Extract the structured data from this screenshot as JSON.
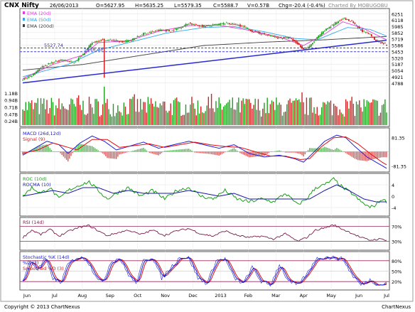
{
  "header": {
    "symbol": "CNX Nifty",
    "date": "26/06/2013",
    "open": "O=5627.95",
    "high": "H=5635.25",
    "low": "L=5579.35",
    "close": "C=5588.7",
    "volume": "V=0.57B",
    "change": "Chg=-20.4 (-0.4%)",
    "charted_by": "Charted By MOBUGOBU"
  },
  "footer": {
    "copyright": "Copyright © 2013 ChartNexus",
    "brand": "ChartNexus"
  },
  "colors": {
    "price_up": "#1a9a1a",
    "price_down": "#d01818",
    "ema20": "#e040e0",
    "ema50": "#30a8f0",
    "ema200": "#404040",
    "trendline": "#2a2ad0",
    "volume_up": "#1f9f1f",
    "volume_down": "#d02222",
    "macd": "#2020d0",
    "signal": "#e01010",
    "roc": "#18a018",
    "rocma": "#1a1aa8",
    "rsi": "#7a1a4a",
    "stoch_k": "#1a1ad0",
    "stoch_d": "#e01010",
    "ref_line": "#9a2a5a"
  },
  "chart_data": [
    {
      "type": "candlestick",
      "panel": "price",
      "legend": [
        {
          "name": "EMA (20d)",
          "color": "#e040e0"
        },
        {
          "name": "EMA (50d)",
          "color": "#30a8f0"
        },
        {
          "name": "EMA (200d)",
          "color": "#404040"
        }
      ],
      "x_ticks": [
        "Jun",
        "Jul",
        "Aug",
        "Sep",
        "Oct",
        "Nov",
        "Dec",
        "2013",
        "Feb",
        "Mar",
        "Apr",
        "May",
        "Jun",
        "Jul"
      ],
      "y_ticks": [
        "6251",
        "6118",
        "5985",
        "5852",
        "5719",
        "5586",
        "5453",
        "5320",
        "5187",
        "5054",
        "4921",
        "4788"
      ],
      "ylim": [
        4740,
        6300
      ],
      "annotations": [
        {
          "text": "5527.74",
          "level": 5527.74
        },
        {
          "text": "5448.43",
          "level": 5448.43
        }
      ],
      "close_waypoints": [
        [
          0,
          4860
        ],
        [
          6,
          4950
        ],
        [
          12,
          5120
        ],
        [
          18,
          5200
        ],
        [
          26,
          5280
        ],
        [
          34,
          5220
        ],
        [
          40,
          5400
        ],
        [
          46,
          5640
        ],
        [
          52,
          5700
        ],
        [
          60,
          5690
        ],
        [
          66,
          5650
        ],
        [
          72,
          5700
        ],
        [
          76,
          5760
        ],
        [
          80,
          5830
        ],
        [
          86,
          5870
        ],
        [
          92,
          5910
        ],
        [
          98,
          5880
        ],
        [
          104,
          5960
        ],
        [
          110,
          6050
        ],
        [
          116,
          6000
        ],
        [
          122,
          5980
        ],
        [
          128,
          6020
        ],
        [
          134,
          6050
        ],
        [
          140,
          6030
        ],
        [
          146,
          5980
        ],
        [
          152,
          5880
        ],
        [
          158,
          5830
        ],
        [
          164,
          5780
        ],
        [
          170,
          5740
        ],
        [
          176,
          5740
        ],
        [
          180,
          5670
        ],
        [
          186,
          5500
        ],
        [
          190,
          5560
        ],
        [
          196,
          5780
        ],
        [
          202,
          5950
        ],
        [
          208,
          6070
        ],
        [
          212,
          6160
        ],
        [
          218,
          6080
        ],
        [
          224,
          5900
        ],
        [
          230,
          5810
        ],
        [
          234,
          5680
        ],
        [
          238,
          5640
        ],
        [
          241,
          5590
        ]
      ],
      "ema20_waypoints": [
        [
          0,
          4880
        ],
        [
          20,
          5180
        ],
        [
          40,
          5380
        ],
        [
          50,
          5640
        ],
        [
          70,
          5680
        ],
        [
          90,
          5880
        ],
        [
          110,
          6000
        ],
        [
          130,
          6010
        ],
        [
          150,
          5900
        ],
        [
          170,
          5760
        ],
        [
          186,
          5580
        ],
        [
          200,
          5820
        ],
        [
          212,
          6080
        ],
        [
          225,
          5950
        ],
        [
          241,
          5700
        ]
      ],
      "ema50_waypoints": [
        [
          0,
          4920
        ],
        [
          30,
          5180
        ],
        [
          50,
          5480
        ],
        [
          70,
          5640
        ],
        [
          95,
          5840
        ],
        [
          120,
          5960
        ],
        [
          140,
          5980
        ],
        [
          160,
          5870
        ],
        [
          180,
          5730
        ],
        [
          195,
          5700
        ],
        [
          215,
          5960
        ],
        [
          230,
          5920
        ],
        [
          241,
          5780
        ]
      ],
      "ema200_waypoints": [
        [
          0,
          5060
        ],
        [
          40,
          5180
        ],
        [
          80,
          5380
        ],
        [
          120,
          5580
        ],
        [
          160,
          5650
        ],
        [
          200,
          5700
        ],
        [
          241,
          5770
        ]
      ],
      "trendline": [
        [
          0,
          4790
        ],
        [
          241,
          5690
        ]
      ],
      "volume_ticks": [
        "1.18B",
        "0.94B",
        "0.71B",
        "0.47B",
        "0.24B"
      ]
    },
    {
      "type": "line",
      "panel": "macd",
      "series": [
        {
          "name": "MACD (26d,12d)",
          "color": "#2020d0"
        },
        {
          "name": "Signal (9)",
          "color": "#e01010"
        }
      ],
      "y_ticks": [
        "81.35",
        "-81.35"
      ],
      "ylim": [
        -100,
        120
      ],
      "macd_waypoints": [
        [
          0,
          -20
        ],
        [
          8,
          20
        ],
        [
          16,
          60
        ],
        [
          24,
          40
        ],
        [
          30,
          -10
        ],
        [
          38,
          50
        ],
        [
          46,
          90
        ],
        [
          54,
          60
        ],
        [
          62,
          10
        ],
        [
          70,
          30
        ],
        [
          80,
          55
        ],
        [
          90,
          20
        ],
        [
          100,
          40
        ],
        [
          110,
          60
        ],
        [
          120,
          40
        ],
        [
          130,
          20
        ],
        [
          140,
          40
        ],
        [
          150,
          -10
        ],
        [
          160,
          -30
        ],
        [
          170,
          -20
        ],
        [
          180,
          -40
        ],
        [
          186,
          -60
        ],
        [
          192,
          -10
        ],
        [
          200,
          60
        ],
        [
          208,
          95
        ],
        [
          214,
          80
        ],
        [
          220,
          30
        ],
        [
          228,
          -30
        ],
        [
          236,
          -70
        ],
        [
          241,
          -95
        ]
      ],
      "signal_waypoints": [
        [
          0,
          -10
        ],
        [
          10,
          10
        ],
        [
          20,
          50
        ],
        [
          28,
          30
        ],
        [
          36,
          10
        ],
        [
          46,
          70
        ],
        [
          56,
          70
        ],
        [
          64,
          25
        ],
        [
          74,
          35
        ],
        [
          84,
          45
        ],
        [
          94,
          25
        ],
        [
          104,
          40
        ],
        [
          114,
          55
        ],
        [
          124,
          40
        ],
        [
          134,
          30
        ],
        [
          144,
          25
        ],
        [
          154,
          0
        ],
        [
          164,
          -25
        ],
        [
          174,
          -25
        ],
        [
          184,
          -45
        ],
        [
          190,
          -40
        ],
        [
          198,
          30
        ],
        [
          206,
          80
        ],
        [
          214,
          85
        ],
        [
          222,
          45
        ],
        [
          230,
          -10
        ],
        [
          238,
          -60
        ],
        [
          241,
          -75
        ]
      ]
    },
    {
      "type": "line",
      "panel": "roc",
      "series": [
        {
          "name": "ROC (10d)",
          "color": "#18a018"
        },
        {
          "name": "ROCMA (10)",
          "color": "#1a1aa8"
        }
      ],
      "y_ticks": [
        "4",
        "0",
        "-4"
      ],
      "ylim": [
        -6,
        7
      ],
      "roc_waypoints": [
        [
          0,
          0
        ],
        [
          6,
          3
        ],
        [
          12,
          1
        ],
        [
          18,
          3
        ],
        [
          24,
          -1
        ],
        [
          30,
          2
        ],
        [
          38,
          4
        ],
        [
          44,
          5
        ],
        [
          50,
          2
        ],
        [
          56,
          -1
        ],
        [
          62,
          1
        ],
        [
          70,
          3
        ],
        [
          78,
          0
        ],
        [
          86,
          2
        ],
        [
          94,
          -1
        ],
        [
          102,
          2
        ],
        [
          110,
          3
        ],
        [
          118,
          0
        ],
        [
          126,
          -1
        ],
        [
          134,
          2
        ],
        [
          142,
          -1
        ],
        [
          150,
          -2
        ],
        [
          158,
          -1
        ],
        [
          166,
          -2
        ],
        [
          174,
          1
        ],
        [
          182,
          -3
        ],
        [
          188,
          -1
        ],
        [
          194,
          3
        ],
        [
          200,
          4
        ],
        [
          206,
          6
        ],
        [
          212,
          3
        ],
        [
          218,
          1
        ],
        [
          224,
          -2
        ],
        [
          230,
          -4
        ],
        [
          234,
          -3
        ],
        [
          238,
          -1
        ],
        [
          241,
          -2
        ]
      ],
      "rocma_waypoints": [
        [
          0,
          0
        ],
        [
          10,
          1
        ],
        [
          20,
          2
        ],
        [
          30,
          1
        ],
        [
          40,
          3
        ],
        [
          50,
          3
        ],
        [
          60,
          1
        ],
        [
          70,
          2
        ],
        [
          80,
          1
        ],
        [
          90,
          1
        ],
        [
          100,
          1
        ],
        [
          110,
          2
        ],
        [
          120,
          1
        ],
        [
          130,
          0
        ],
        [
          140,
          1
        ],
        [
          150,
          -1
        ],
        [
          160,
          -1
        ],
        [
          170,
          -1
        ],
        [
          180,
          -1
        ],
        [
          190,
          -1
        ],
        [
          200,
          2
        ],
        [
          208,
          4
        ],
        [
          216,
          2
        ],
        [
          226,
          -1
        ],
        [
          234,
          -2
        ],
        [
          241,
          -2
        ]
      ]
    },
    {
      "type": "line",
      "panel": "rsi",
      "series": [
        {
          "name": "RSI (14d)",
          "color": "#7a1a4a"
        }
      ],
      "y_ticks": [
        "70%",
        "30%"
      ],
      "ylim": [
        10,
        90
      ],
      "rsi_waypoints": [
        [
          0,
          40
        ],
        [
          6,
          60
        ],
        [
          12,
          48
        ],
        [
          18,
          62
        ],
        [
          24,
          44
        ],
        [
          30,
          56
        ],
        [
          38,
          68
        ],
        [
          44,
          72
        ],
        [
          50,
          58
        ],
        [
          56,
          45
        ],
        [
          62,
          52
        ],
        [
          70,
          60
        ],
        [
          78,
          48
        ],
        [
          86,
          60
        ],
        [
          94,
          46
        ],
        [
          102,
          58
        ],
        [
          110,
          64
        ],
        [
          118,
          50
        ],
        [
          126,
          44
        ],
        [
          134,
          58
        ],
        [
          142,
          46
        ],
        [
          150,
          40
        ],
        [
          158,
          44
        ],
        [
          166,
          36
        ],
        [
          174,
          50
        ],
        [
          182,
          30
        ],
        [
          188,
          40
        ],
        [
          194,
          60
        ],
        [
          200,
          66
        ],
        [
          206,
          74
        ],
        [
          212,
          62
        ],
        [
          218,
          52
        ],
        [
          224,
          40
        ],
        [
          230,
          33
        ],
        [
          236,
          36
        ],
        [
          241,
          34
        ]
      ]
    },
    {
      "type": "line",
      "panel": "stochastic",
      "series": [
        {
          "name": "Stochastic %K (14d)",
          "color": "#1a1ad0"
        },
        {
          "name": "%D (3)",
          "color": "#1a1ad0"
        },
        {
          "name": "Smoothed %D (3)",
          "color": "#e01010"
        }
      ],
      "y_ticks": [
        "80%",
        "50%",
        "20%"
      ],
      "ylim": [
        0,
        100
      ],
      "k_waypoints": [
        [
          0,
          20
        ],
        [
          5,
          80
        ],
        [
          10,
          55
        ],
        [
          15,
          85
        ],
        [
          20,
          30
        ],
        [
          25,
          15
        ],
        [
          30,
          70
        ],
        [
          36,
          90
        ],
        [
          42,
          85
        ],
        [
          48,
          40
        ],
        [
          53,
          15
        ],
        [
          58,
          75
        ],
        [
          64,
          88
        ],
        [
          70,
          40
        ],
        [
          75,
          15
        ],
        [
          80,
          80
        ],
        [
          86,
          90
        ],
        [
          92,
          30
        ],
        [
          98,
          60
        ],
        [
          104,
          90
        ],
        [
          110,
          88
        ],
        [
          116,
          30
        ],
        [
          122,
          15
        ],
        [
          128,
          80
        ],
        [
          134,
          85
        ],
        [
          140,
          30
        ],
        [
          146,
          15
        ],
        [
          152,
          60
        ],
        [
          158,
          20
        ],
        [
          164,
          10
        ],
        [
          170,
          70
        ],
        [
          176,
          20
        ],
        [
          182,
          10
        ],
        [
          188,
          40
        ],
        [
          194,
          85
        ],
        [
          200,
          90
        ],
        [
          206,
          88
        ],
        [
          212,
          85
        ],
        [
          218,
          40
        ],
        [
          224,
          10
        ],
        [
          230,
          25
        ],
        [
          236,
          10
        ],
        [
          241,
          15
        ]
      ]
    }
  ]
}
